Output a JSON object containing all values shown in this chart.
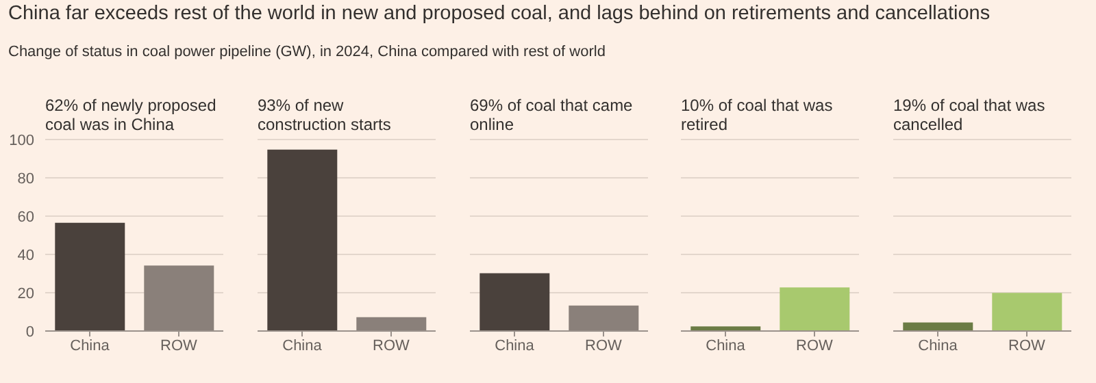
{
  "chart_data": [
    {
      "type": "bar",
      "title": "China far exceeds rest of the world in new and proposed coal, and lags behind on retirements and cancellations",
      "annotations": [
        "Change of status in coal power pipeline (GW), in 2024, China compared with rest of world"
      ],
      "subtitle": "62% of newly proposed coal was in China",
      "categories": [
        "China",
        "ROW"
      ],
      "values": [
        56.5,
        34.2
      ],
      "colors": [
        "#4a413c",
        "#8a807a"
      ],
      "ylim": [
        0,
        100
      ],
      "yticks": [
        0,
        20,
        40,
        60,
        80,
        100
      ],
      "grid": "y",
      "legend": false
    },
    {
      "type": "bar",
      "subtitle": "93% of new construction starts",
      "categories": [
        "China",
        "ROW"
      ],
      "values": [
        94.7,
        7.2
      ],
      "colors": [
        "#4a413c",
        "#8a807a"
      ],
      "ylim": [
        0,
        100
      ],
      "yticks": [
        0,
        20,
        40,
        60,
        80,
        100
      ],
      "grid": "y",
      "legend": false,
      "tick_labels": "x"
    },
    {
      "type": "bar",
      "subtitle": "69% of coal that came online",
      "categories": [
        "China",
        "ROW"
      ],
      "values": [
        30.2,
        13.3
      ],
      "colors": [
        "#4a413c",
        "#8a807a"
      ],
      "ylim": [
        0,
        100
      ],
      "yticks": [
        0,
        20,
        40,
        60,
        80,
        100
      ],
      "grid": "y",
      "legend": false,
      "tick_labels": "x"
    },
    {
      "type": "bar",
      "subtitle": "10% of coal that was retired",
      "categories": [
        "China",
        "ROW"
      ],
      "values": [
        2.4,
        22.8
      ],
      "colors": [
        "#6b7c45",
        "#a8c96e"
      ],
      "ylim": [
        0,
        100
      ],
      "yticks": [
        0,
        20,
        40,
        60,
        80,
        100
      ],
      "grid": "y",
      "legend": false,
      "tick_labels": "x"
    },
    {
      "type": "bar",
      "subtitle": "19% of coal that was cancelled",
      "categories": [
        "China",
        "ROW"
      ],
      "values": [
        4.5,
        19.9
      ],
      "colors": [
        "#6b7c45",
        "#a8c96e"
      ],
      "ylim": [
        0,
        100
      ],
      "yticks": [
        0,
        20,
        40,
        60,
        80,
        100
      ],
      "grid": "y",
      "legend": false,
      "tick_labels": "x"
    }
  ]
}
